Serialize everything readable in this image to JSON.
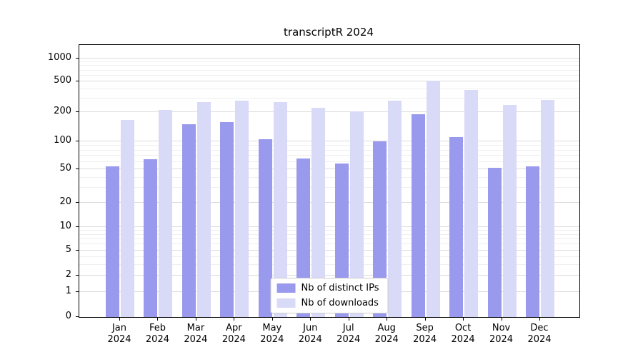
{
  "chart_data": {
    "type": "bar",
    "title": "transcriptR 2024",
    "xlabel": "",
    "ylabel": "",
    "scale": "symlog",
    "grid": true,
    "legend_position": "lower center",
    "yticks": [
      0,
      1,
      2,
      5,
      10,
      20,
      50,
      100,
      200,
      500,
      1000
    ],
    "ylim": [
      0,
      1500
    ],
    "categories": [
      "Jan 2024",
      "Feb 2024",
      "Mar 2024",
      "Apr 2024",
      "May 2024",
      "Jun 2024",
      "Jul 2024",
      "Aug 2024",
      "Sep 2024",
      "Oct 2024",
      "Nov 2024",
      "Dec 2024"
    ],
    "series": [
      {
        "name": "Nb of distinct IPs",
        "color": "#9999ed",
        "values": [
          54,
          64,
          150,
          158,
          105,
          65,
          58,
          100,
          190,
          110,
          52,
          54
        ]
      },
      {
        "name": "Nb of downloads",
        "color": "#d9d9f8",
        "values": [
          165,
          215,
          268,
          280,
          268,
          230,
          205,
          280,
          511,
          386,
          250,
          290
        ]
      }
    ]
  }
}
